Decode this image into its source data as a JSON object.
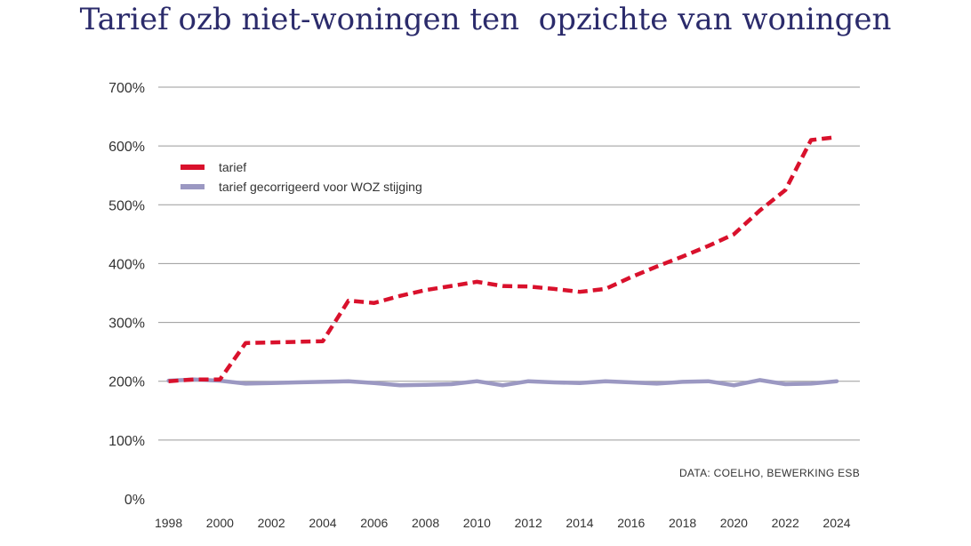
{
  "chart_data": {
    "type": "line",
    "title": "Tarief ozb niet-woningen ten  opzichte van woningen",
    "xlabel": "",
    "ylabel": "",
    "ylim": [
      0,
      700
    ],
    "y_ticks": [
      "0%",
      "100%",
      "200%",
      "300%",
      "400%",
      "500%",
      "600%",
      "700%"
    ],
    "y_tick_values": [
      0,
      100,
      200,
      300,
      400,
      500,
      600,
      700
    ],
    "x_ticks": [
      "1998",
      "2000",
      "2002",
      "2004",
      "2006",
      "2008",
      "2010",
      "2012",
      "2014",
      "2016",
      "2018",
      "2020",
      "2022",
      "2024"
    ],
    "x_tick_values": [
      1998,
      2000,
      2002,
      2004,
      2006,
      2008,
      2010,
      2012,
      2014,
      2016,
      2018,
      2020,
      2022,
      2024
    ],
    "xlim": [
      1997.6,
      2024.9
    ],
    "grid": true,
    "legend_position": "top-left",
    "source_note": "DATA: COELHO, BEWERKING ESB",
    "series": [
      {
        "name": "tarief",
        "color": "#d9112c",
        "style": "dashed",
        "x": [
          1998,
          1999,
          2000,
          2001,
          2002,
          2003,
          2004,
          2005,
          2006,
          2007,
          2008,
          2009,
          2010,
          2011,
          2012,
          2013,
          2014,
          2015,
          2016,
          2017,
          2018,
          2019,
          2020,
          2021,
          2022,
          2023,
          2024
        ],
        "values": [
          200,
          203,
          203,
          265,
          266,
          267,
          268,
          337,
          333,
          345,
          355,
          362,
          369,
          362,
          361,
          357,
          352,
          357,
          377,
          395,
          412,
          430,
          450,
          490,
          525,
          610,
          615
        ]
      },
      {
        "name": "tarief gecorrigeerd voor WOZ stijging",
        "color": "#9b98c2",
        "style": "solid",
        "x": [
          1998,
          1999,
          2000,
          2001,
          2002,
          2003,
          2004,
          2005,
          2006,
          2007,
          2008,
          2009,
          2010,
          2011,
          2012,
          2013,
          2014,
          2015,
          2016,
          2017,
          2018,
          2019,
          2020,
          2021,
          2022,
          2023,
          2024
        ],
        "values": [
          201,
          203,
          201,
          196,
          197,
          198,
          199,
          200,
          197,
          193,
          194,
          195,
          200,
          193,
          200,
          198,
          197,
          200,
          198,
          196,
          199,
          200,
          193,
          202,
          195,
          196,
          200
        ]
      }
    ]
  }
}
